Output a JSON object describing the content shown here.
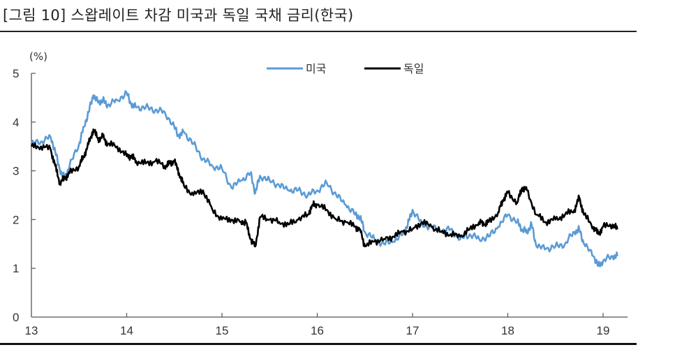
{
  "title": "[그림 10] 스왑레이트 차감 미국과 독일 국채 금리(한국)",
  "unit_label": "(%)",
  "legend": [
    {
      "label": "미국",
      "color": "#5b9bd5"
    },
    {
      "label": "독일",
      "color": "#000000"
    }
  ],
  "chart_data": {
    "type": "line",
    "title": "[그림 10] 스왑레이트 차감 미국과 독일 국채 금리(한국)",
    "xlabel": "",
    "ylabel": "(%)",
    "ylim": [
      0,
      5
    ],
    "xlim": [
      13,
      19.2
    ],
    "yticks": [
      0,
      1,
      2,
      3,
      4,
      5
    ],
    "xticks": [
      "13",
      "14",
      "15",
      "16",
      "17",
      "18",
      "19"
    ],
    "grid": false,
    "legend_position": "top-center",
    "series": [
      {
        "name": "미국",
        "color": "#5b9bd5",
        "x": [
          13.0,
          13.1,
          13.2,
          13.25,
          13.3,
          13.35,
          13.4,
          13.5,
          13.55,
          13.6,
          13.65,
          13.7,
          13.75,
          13.8,
          13.9,
          14.0,
          14.05,
          14.1,
          14.2,
          14.3,
          14.4,
          14.5,
          14.55,
          14.6,
          14.7,
          14.8,
          14.9,
          15.0,
          15.1,
          15.2,
          15.3,
          15.35,
          15.4,
          15.5,
          15.6,
          15.7,
          15.8,
          15.9,
          16.0,
          16.1,
          16.2,
          16.3,
          16.4,
          16.45,
          16.5,
          16.6,
          16.7,
          16.8,
          16.9,
          16.95,
          17.0,
          17.1,
          17.2,
          17.3,
          17.4,
          17.5,
          17.6,
          17.7,
          17.8,
          17.9,
          18.0,
          18.1,
          18.15,
          18.2,
          18.25,
          18.3,
          18.4,
          18.5,
          18.6,
          18.7,
          18.75,
          18.8,
          18.9,
          18.95,
          19.0,
          19.1,
          19.15
        ],
        "values": [
          3.55,
          3.6,
          3.7,
          3.4,
          3.0,
          2.85,
          3.1,
          3.55,
          3.9,
          4.2,
          4.55,
          4.4,
          4.45,
          4.35,
          4.45,
          4.6,
          4.35,
          4.3,
          4.3,
          4.25,
          4.2,
          3.9,
          3.7,
          3.8,
          3.55,
          3.25,
          3.1,
          3.05,
          2.65,
          2.8,
          2.95,
          2.55,
          2.9,
          2.8,
          2.7,
          2.6,
          2.6,
          2.5,
          2.6,
          2.75,
          2.5,
          2.3,
          2.1,
          2.05,
          1.75,
          1.6,
          1.5,
          1.55,
          1.7,
          1.9,
          2.2,
          1.9,
          1.85,
          1.75,
          1.8,
          1.6,
          1.7,
          1.6,
          1.65,
          1.85,
          2.1,
          1.95,
          1.8,
          1.75,
          1.9,
          1.45,
          1.4,
          1.45,
          1.5,
          1.75,
          1.8,
          1.5,
          1.25,
          1.05,
          1.15,
          1.25,
          1.25
        ]
      },
      {
        "name": "독일",
        "color": "#000000",
        "x": [
          13.0,
          13.1,
          13.2,
          13.25,
          13.3,
          13.35,
          13.4,
          13.5,
          13.55,
          13.6,
          13.65,
          13.7,
          13.75,
          13.8,
          13.9,
          14.0,
          14.05,
          14.1,
          14.2,
          14.3,
          14.4,
          14.45,
          14.5,
          14.55,
          14.6,
          14.7,
          14.8,
          14.9,
          15.0,
          15.1,
          15.2,
          15.25,
          15.3,
          15.35,
          15.4,
          15.5,
          15.6,
          15.7,
          15.8,
          15.9,
          15.95,
          16.0,
          16.1,
          16.2,
          16.3,
          16.4,
          16.45,
          16.5,
          16.6,
          16.7,
          16.8,
          16.9,
          17.0,
          17.1,
          17.2,
          17.3,
          17.4,
          17.5,
          17.6,
          17.7,
          17.75,
          17.8,
          17.9,
          17.95,
          18.0,
          18.1,
          18.15,
          18.2,
          18.3,
          18.4,
          18.5,
          18.6,
          18.7,
          18.75,
          18.8,
          18.9,
          18.95,
          19.0,
          19.1,
          19.15
        ],
        "values": [
          3.5,
          3.5,
          3.45,
          3.1,
          2.75,
          2.85,
          2.95,
          3.1,
          3.3,
          3.55,
          3.85,
          3.65,
          3.7,
          3.55,
          3.5,
          3.3,
          3.3,
          3.2,
          3.15,
          3.2,
          3.1,
          3.15,
          3.2,
          2.95,
          2.7,
          2.5,
          2.6,
          2.2,
          2.0,
          2.0,
          1.95,
          1.95,
          1.6,
          1.45,
          2.05,
          2.0,
          1.95,
          1.9,
          2.0,
          2.1,
          2.3,
          2.3,
          2.2,
          2.0,
          1.95,
          1.85,
          1.8,
          1.45,
          1.55,
          1.6,
          1.65,
          1.75,
          1.8,
          1.95,
          1.85,
          1.75,
          1.7,
          1.65,
          1.8,
          1.95,
          1.9,
          1.95,
          2.15,
          2.4,
          2.55,
          2.35,
          2.65,
          2.6,
          2.1,
          1.95,
          2.0,
          2.1,
          2.2,
          2.45,
          2.1,
          1.85,
          1.7,
          1.85,
          1.9,
          1.8
        ]
      }
    ]
  }
}
